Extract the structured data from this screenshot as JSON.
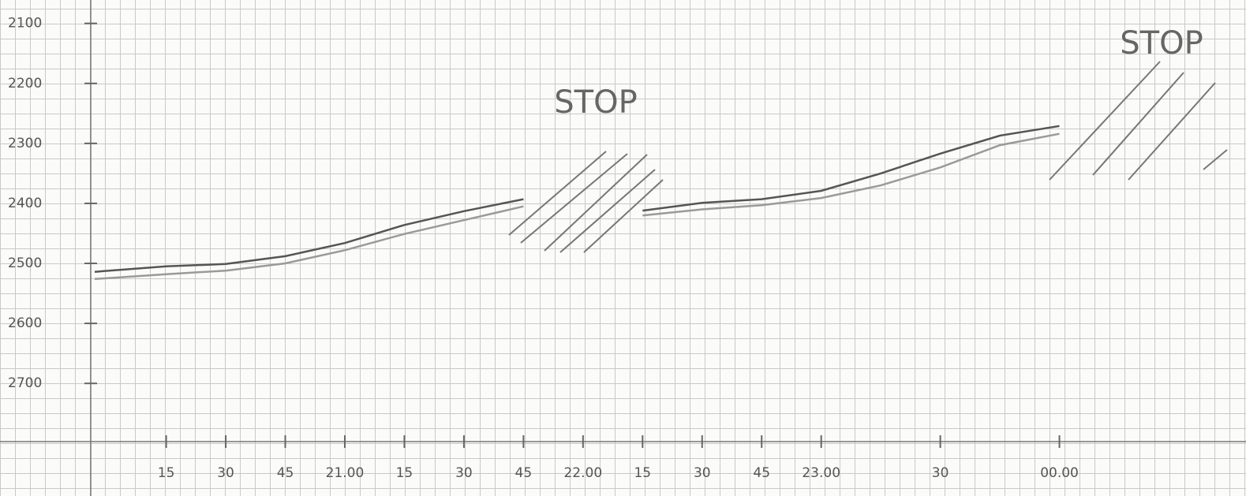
{
  "chart_data": {
    "type": "line",
    "x": [
      -3,
      15,
      30,
      45,
      60,
      75,
      90,
      105,
      120,
      135,
      150,
      165,
      180,
      195,
      210,
      225,
      240
    ],
    "series": [
      {
        "color": "#555555",
        "values": [
          2514,
          2505,
          2501,
          2488,
          2466,
          2436,
          2413,
          2393,
          null,
          2412,
          2399,
          2393,
          2379,
          2350,
          2317,
          2287,
          2271
        ]
      },
      {
        "color": "#9a9a9a",
        "values": [
          2526,
          2518,
          2512,
          2500,
          2478,
          2451,
          2428,
          2405,
          null,
          2420,
          2410,
          2403,
          2391,
          2370,
          2340,
          2303,
          2284
        ]
      }
    ],
    "xlim": [
      -4,
      287
    ],
    "ylim": [
      2797,
      2061
    ],
    "yticks": [
      2100,
      2200,
      2300,
      2400,
      2500,
      2600,
      2700
    ],
    "xticks": [
      15,
      30,
      45,
      {
        "value": 60,
        "label": "21.00"
      },
      {
        "value": 75,
        "label": "15"
      },
      {
        "value": 90,
        "label": "30"
      },
      {
        "value": 105,
        "label": "45"
      },
      {
        "value": 120,
        "label": "22.00"
      },
      {
        "value": 135,
        "label": "15"
      },
      {
        "value": 150,
        "label": "30"
      },
      {
        "value": 165,
        "label": "45"
      },
      {
        "value": 180,
        "label": "23.00"
      },
      {
        "value": 210,
        "label": "30"
      },
      {
        "value": 240,
        "label": "00.00"
      }
    ],
    "annotations": [
      "STOP",
      "STOP"
    ]
  }
}
